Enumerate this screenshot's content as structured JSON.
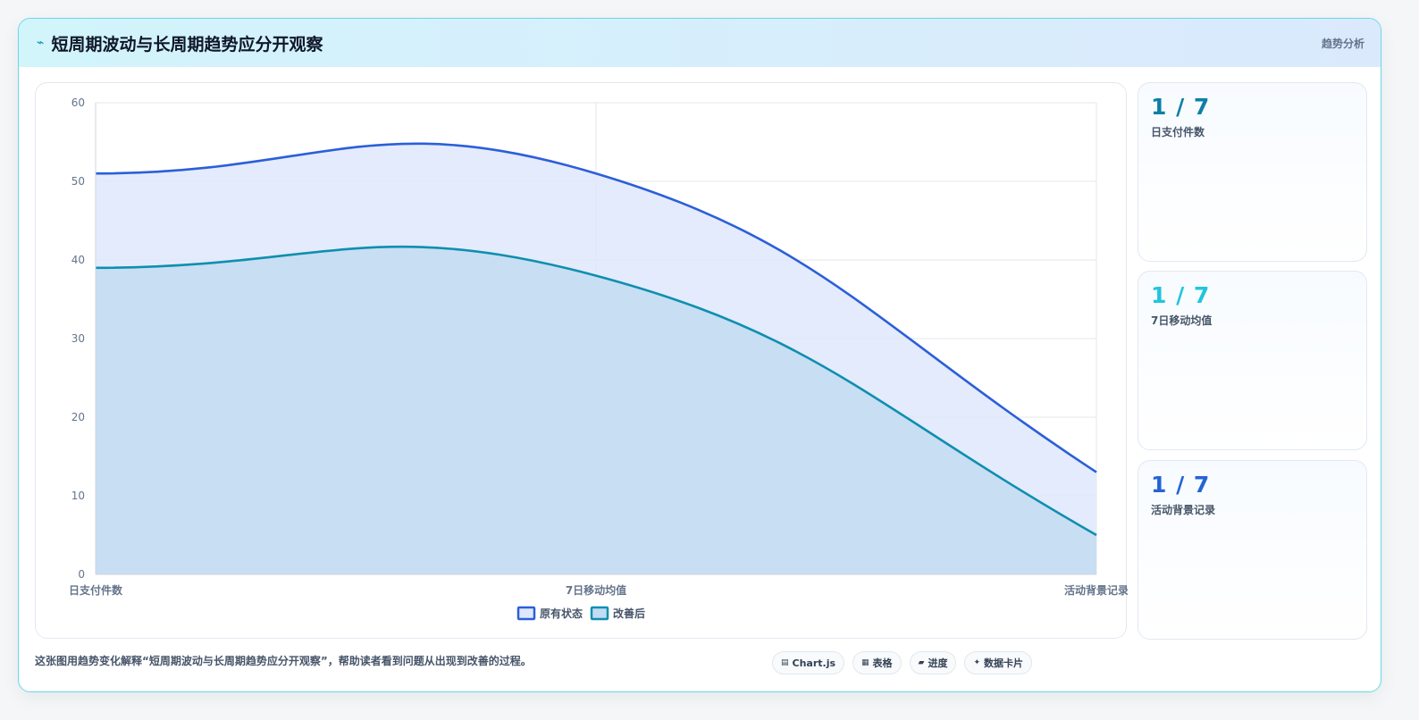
{
  "header": {
    "icon": "lightning-icon",
    "title": "短周期波动与长周期趋势应分开观察",
    "tag": "趋势分析"
  },
  "chart_data": {
    "type": "area",
    "categories": [
      "日支付件数",
      "7日移动均值",
      "活动背景记录"
    ],
    "series": [
      {
        "name": "原有状态",
        "values": [
          51,
          51,
          13
        ],
        "color": "#2b5fd9",
        "fill": "#dfe8fb"
      },
      {
        "name": "改善后",
        "values": [
          39,
          38,
          5
        ],
        "color": "#0e8fb0",
        "fill": "#c3dcf1"
      }
    ],
    "ylim": [
      0,
      60
    ],
    "yticks": [
      0,
      10,
      20,
      30,
      40,
      50,
      60
    ],
    "grid": true,
    "legend": "bottom"
  },
  "side_cards": [
    {
      "value": "1 / 7",
      "label": "日支付件数",
      "color": "#0e7fa6"
    },
    {
      "value": "1 / 7",
      "label": "7日移动均值",
      "color": "#22c5dc"
    },
    {
      "value": "1 / 7",
      "label": "活动背景记录",
      "color": "#2563d6"
    }
  ],
  "footer": {
    "description": "这张图用趋势变化解释“短周期波动与长周期趋势应分开观察”，帮助读者看到问题从出现到改善的过程。",
    "chips": [
      {
        "icon": "chart-icon",
        "label": "Chart.js"
      },
      {
        "icon": "table-icon",
        "label": "表格"
      },
      {
        "icon": "progress-icon",
        "label": "进度"
      },
      {
        "icon": "sparkle-icon",
        "label": "数据卡片"
      }
    ]
  }
}
